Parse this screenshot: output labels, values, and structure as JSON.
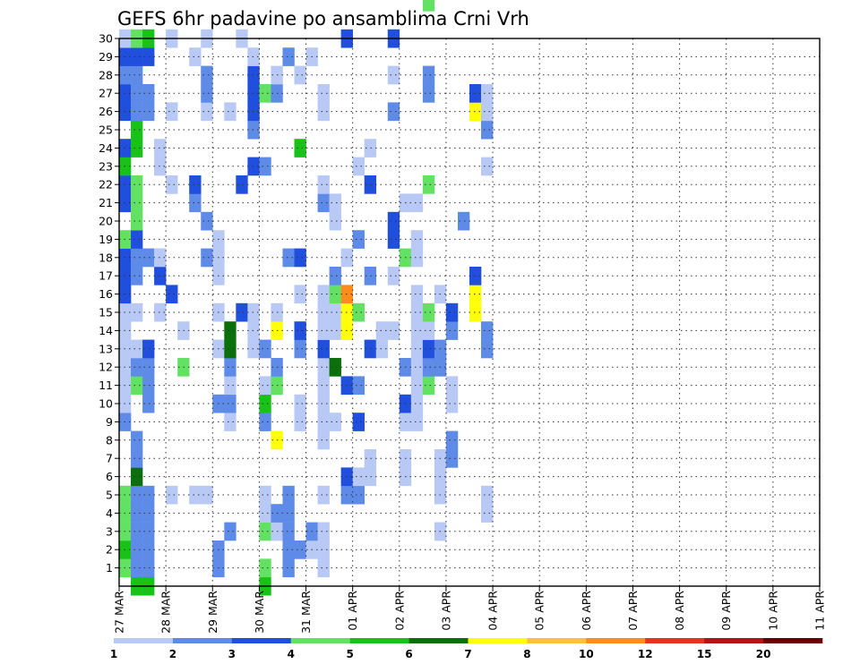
{
  "chart_data": {
    "type": "heatmap",
    "title": "GEFS 6hr padavine po ansamblima Crni Vrh",
    "y_ticks": [
      "1",
      "2",
      "3",
      "4",
      "5",
      "6",
      "7",
      "8",
      "9",
      "10",
      "11",
      "12",
      "13",
      "14",
      "15",
      "16",
      "17",
      "18",
      "19",
      "20",
      "21",
      "22",
      "23",
      "24",
      "25",
      "26",
      "27",
      "28",
      "29",
      "30"
    ],
    "x_ticks": [
      "27 MAR",
      "28 MAR",
      "29 MAR",
      "30 MAR",
      "31 MAR",
      "01 APR",
      "02 APR",
      "03 APR",
      "04 APR",
      "05 APR",
      "06 APR",
      "07 APR",
      "08 APR",
      "09 APR",
      "10 APR",
      "11 APR"
    ],
    "x_steps_per_day": 4,
    "y_range": [
      0,
      30
    ],
    "grid": true,
    "colorbar": {
      "labels": [
        "1",
        "2",
        "3",
        "4",
        "5",
        "6",
        "7",
        "8",
        "10",
        "12",
        "15",
        "20"
      ],
      "colors": [
        "#b9c9f5",
        "#5f8be8",
        "#1f4fdc",
        "#63e163",
        "#19c219",
        "#0b6f0b",
        "#ffff0a",
        "#ffc03b",
        "#ff8c1a",
        "#e6321e",
        "#b41414",
        "#6b0000"
      ]
    },
    "cells": [
      [
        4,
        0,
        1
      ],
      [
        5,
        0,
        2
      ],
      [
        4,
        0,
        3
      ],
      [
        4,
        0,
        4
      ],
      [
        1,
        0,
        5
      ],
      [
        4,
        0,
        5
      ],
      [
        2,
        0,
        9
      ],
      [
        1,
        0,
        10
      ],
      [
        1,
        0,
        11
      ],
      [
        1,
        0,
        12
      ],
      [
        1,
        0,
        13
      ],
      [
        1,
        0,
        14
      ],
      [
        1,
        0,
        15
      ],
      [
        3,
        0,
        16
      ],
      [
        3,
        0,
        17
      ],
      [
        3,
        0,
        18
      ],
      [
        4,
        0,
        19
      ],
      [
        3,
        0,
        21
      ],
      [
        3,
        0,
        22
      ],
      [
        5,
        0,
        23
      ],
      [
        3,
        0,
        24
      ],
      [
        3,
        0,
        26
      ],
      [
        3,
        0,
        27
      ],
      [
        2,
        0,
        28
      ],
      [
        3,
        0,
        29
      ],
      [
        1,
        0,
        30
      ],
      [
        5,
        1,
        0
      ],
      [
        2,
        1,
        1
      ],
      [
        2,
        1,
        2
      ],
      [
        2,
        1,
        3
      ],
      [
        2,
        1,
        4
      ],
      [
        2,
        1,
        5
      ],
      [
        6,
        1,
        6
      ],
      [
        2,
        1,
        7
      ],
      [
        2,
        1,
        8
      ],
      [
        4,
        1,
        11
      ],
      [
        2,
        1,
        12
      ],
      [
        1,
        1,
        13
      ],
      [
        1,
        1,
        15
      ],
      [
        2,
        1,
        17
      ],
      [
        2,
        1,
        18
      ],
      [
        3,
        1,
        19
      ],
      [
        4,
        1,
        20
      ],
      [
        4,
        1,
        21
      ],
      [
        4,
        1,
        22
      ],
      [
        5,
        1,
        24
      ],
      [
        5,
        1,
        25
      ],
      [
        2,
        1,
        26
      ],
      [
        2,
        1,
        27
      ],
      [
        2,
        1,
        28
      ],
      [
        3,
        1,
        29
      ],
      [
        4,
        1,
        30
      ],
      [
        5,
        2,
        0
      ],
      [
        2,
        2,
        1
      ],
      [
        2,
        2,
        2
      ],
      [
        2,
        2,
        3
      ],
      [
        2,
        2,
        4
      ],
      [
        2,
        2,
        5
      ],
      [
        2,
        2,
        10
      ],
      [
        2,
        2,
        11
      ],
      [
        2,
        2,
        12
      ],
      [
        3,
        2,
        13
      ],
      [
        2,
        2,
        18
      ],
      [
        2,
        2,
        26
      ],
      [
        2,
        2,
        27
      ],
      [
        3,
        2,
        29
      ],
      [
        5,
        2,
        30
      ],
      [
        1,
        3,
        15
      ],
      [
        1,
        3,
        18
      ],
      [
        1,
        3,
        23
      ],
      [
        1,
        3,
        24
      ],
      [
        3,
        3,
        17
      ],
      [
        1,
        3,
        18
      ],
      [
        1,
        4,
        5
      ],
      [
        3,
        4,
        16
      ],
      [
        1,
        4,
        22
      ],
      [
        1,
        4,
        26
      ],
      [
        1,
        4,
        30
      ],
      [
        4,
        5,
        12
      ],
      [
        1,
        5,
        14
      ],
      [
        1,
        6,
        5
      ],
      [
        1,
        6,
        29
      ],
      [
        2,
        6,
        21
      ],
      [
        3,
        6,
        22
      ],
      [
        1,
        7,
        5
      ],
      [
        2,
        7,
        18
      ],
      [
        2,
        7,
        20
      ],
      [
        1,
        7,
        26
      ],
      [
        1,
        7,
        30
      ],
      [
        2,
        7,
        27
      ],
      [
        2,
        7,
        28
      ],
      [
        2,
        8,
        1
      ],
      [
        2,
        8,
        2
      ],
      [
        2,
        8,
        10
      ],
      [
        1,
        8,
        13
      ],
      [
        1,
        8,
        15
      ],
      [
        1,
        8,
        17
      ],
      [
        1,
        8,
        18
      ],
      [
        1,
        8,
        19
      ],
      [
        2,
        9,
        3
      ],
      [
        1,
        9,
        9
      ],
      [
        2,
        9,
        10
      ],
      [
        1,
        9,
        11
      ],
      [
        2,
        9,
        12
      ],
      [
        6,
        9,
        13
      ],
      [
        6,
        9,
        14
      ],
      [
        1,
        9,
        26
      ],
      [
        3,
        10,
        15
      ],
      [
        3,
        10,
        22
      ],
      [
        1,
        10,
        30
      ],
      [
        1,
        11,
        13
      ],
      [
        1,
        11,
        14
      ],
      [
        1,
        11,
        15
      ],
      [
        3,
        11,
        23
      ],
      [
        2,
        11,
        25
      ],
      [
        3,
        11,
        26
      ],
      [
        3,
        11,
        27
      ],
      [
        3,
        11,
        28
      ],
      [
        1,
        11,
        29
      ],
      [
        5,
        12,
        0
      ],
      [
        4,
        12,
        1
      ],
      [
        4,
        12,
        3
      ],
      [
        1,
        12,
        4
      ],
      [
        1,
        12,
        5
      ],
      [
        2,
        12,
        9
      ],
      [
        5,
        12,
        10
      ],
      [
        1,
        12,
        11
      ],
      [
        2,
        12,
        13
      ],
      [
        2,
        12,
        23
      ],
      [
        4,
        12,
        27
      ],
      [
        1,
        13,
        3
      ],
      [
        2,
        13,
        4
      ],
      [
        7,
        13,
        8
      ],
      [
        4,
        13,
        11
      ],
      [
        2,
        13,
        12
      ],
      [
        7,
        13,
        14
      ],
      [
        1,
        13,
        15
      ],
      [
        2,
        13,
        27
      ],
      [
        1,
        13,
        28
      ],
      [
        2,
        14,
        1
      ],
      [
        2,
        14,
        2
      ],
      [
        2,
        14,
        3
      ],
      [
        2,
        14,
        4
      ],
      [
        2,
        14,
        5
      ],
      [
        2,
        14,
        18
      ],
      [
        2,
        14,
        29
      ],
      [
        2,
        15,
        2
      ],
      [
        1,
        15,
        9
      ],
      [
        1,
        15,
        10
      ],
      [
        2,
        15,
        13
      ],
      [
        3,
        15,
        14
      ],
      [
        1,
        15,
        16
      ],
      [
        3,
        15,
        18
      ],
      [
        5,
        15,
        24
      ],
      [
        1,
        15,
        28
      ],
      [
        1,
        16,
        2
      ],
      [
        2,
        16,
        3
      ],
      [
        1,
        16,
        29
      ],
      [
        1,
        17,
        1
      ],
      [
        1,
        17,
        2
      ],
      [
        1,
        17,
        3
      ],
      [
        1,
        17,
        5
      ],
      [
        1,
        17,
        8
      ],
      [
        1,
        17,
        9
      ],
      [
        1,
        17,
        10
      ],
      [
        1,
        17,
        11
      ],
      [
        1,
        17,
        12
      ],
      [
        3,
        17,
        13
      ],
      [
        1,
        17,
        14
      ],
      [
        1,
        17,
        15
      ],
      [
        1,
        17,
        16
      ],
      [
        2,
        17,
        21
      ],
      [
        1,
        17,
        22
      ],
      [
        1,
        17,
        26
      ],
      [
        1,
        17,
        27
      ],
      [
        1,
        18,
        9
      ],
      [
        6,
        18,
        12
      ],
      [
        1,
        18,
        14
      ],
      [
        1,
        18,
        15
      ],
      [
        4,
        18,
        16
      ],
      [
        2,
        18,
        17
      ],
      [
        1,
        18,
        20
      ],
      [
        1,
        18,
        21
      ],
      [
        2,
        19,
        5
      ],
      [
        3,
        19,
        6
      ],
      [
        3,
        19,
        11
      ],
      [
        7,
        19,
        14
      ],
      [
        7,
        19,
        15
      ],
      [
        9,
        19,
        16
      ],
      [
        1,
        19,
        18
      ],
      [
        3,
        19,
        30
      ],
      [
        2,
        20,
        5
      ],
      [
        1,
        20,
        6
      ],
      [
        3,
        20,
        9
      ],
      [
        2,
        20,
        11
      ],
      [
        4,
        20,
        15
      ],
      [
        2,
        20,
        19
      ],
      [
        1,
        20,
        23
      ],
      [
        1,
        21,
        6
      ],
      [
        1,
        21,
        7
      ],
      [
        3,
        21,
        13
      ],
      [
        2,
        21,
        17
      ],
      [
        3,
        21,
        22
      ],
      [
        1,
        21,
        24
      ],
      [
        1,
        22,
        13
      ],
      [
        1,
        22,
        14
      ],
      [
        1,
        23,
        14
      ],
      [
        1,
        23,
        17
      ],
      [
        3,
        23,
        19
      ],
      [
        3,
        23,
        20
      ],
      [
        2,
        23,
        26
      ],
      [
        1,
        23,
        28
      ],
      [
        3,
        23,
        30
      ],
      [
        1,
        24,
        6
      ],
      [
        1,
        24,
        7
      ],
      [
        1,
        24,
        9
      ],
      [
        3,
        24,
        10
      ],
      [
        2,
        24,
        12
      ],
      [
        4,
        24,
        18
      ],
      [
        1,
        24,
        21
      ],
      [
        1,
        25,
        9
      ],
      [
        1,
        25,
        10
      ],
      [
        1,
        25,
        11
      ],
      [
        1,
        25,
        12
      ],
      [
        1,
        25,
        13
      ],
      [
        1,
        25,
        14
      ],
      [
        1,
        25,
        15
      ],
      [
        1,
        25,
        16
      ],
      [
        1,
        25,
        18
      ],
      [
        1,
        25,
        19
      ],
      [
        1,
        25,
        21
      ],
      [
        4,
        26,
        11
      ],
      [
        2,
        26,
        12
      ],
      [
        3,
        26,
        13
      ],
      [
        1,
        26,
        14
      ],
      [
        4,
        26,
        15
      ],
      [
        4,
        26,
        22
      ],
      [
        2,
        26,
        27
      ],
      [
        2,
        26,
        28
      ],
      [
        4,
        26,
        32
      ],
      [
        1,
        27,
        3
      ],
      [
        1,
        27,
        5
      ],
      [
        1,
        27,
        6
      ],
      [
        1,
        27,
        7
      ],
      [
        2,
        27,
        12
      ],
      [
        2,
        27,
        13
      ],
      [
        1,
        27,
        16
      ],
      [
        2,
        28,
        7
      ],
      [
        2,
        28,
        8
      ],
      [
        1,
        28,
        10
      ],
      [
        1,
        28,
        11
      ],
      [
        2,
        28,
        14
      ],
      [
        3,
        28,
        15
      ],
      [
        2,
        29,
        20
      ],
      [
        7,
        30,
        15
      ],
      [
        7,
        30,
        16
      ],
      [
        3,
        30,
        17
      ],
      [
        7,
        30,
        26
      ],
      [
        3,
        30,
        27
      ],
      [
        1,
        31,
        4
      ],
      [
        1,
        31,
        5
      ],
      [
        2,
        31,
        13
      ],
      [
        2,
        31,
        14
      ],
      [
        1,
        31,
        23
      ],
      [
        2,
        31,
        25
      ],
      [
        1,
        31,
        26
      ],
      [
        1,
        31,
        27
      ]
    ]
  }
}
